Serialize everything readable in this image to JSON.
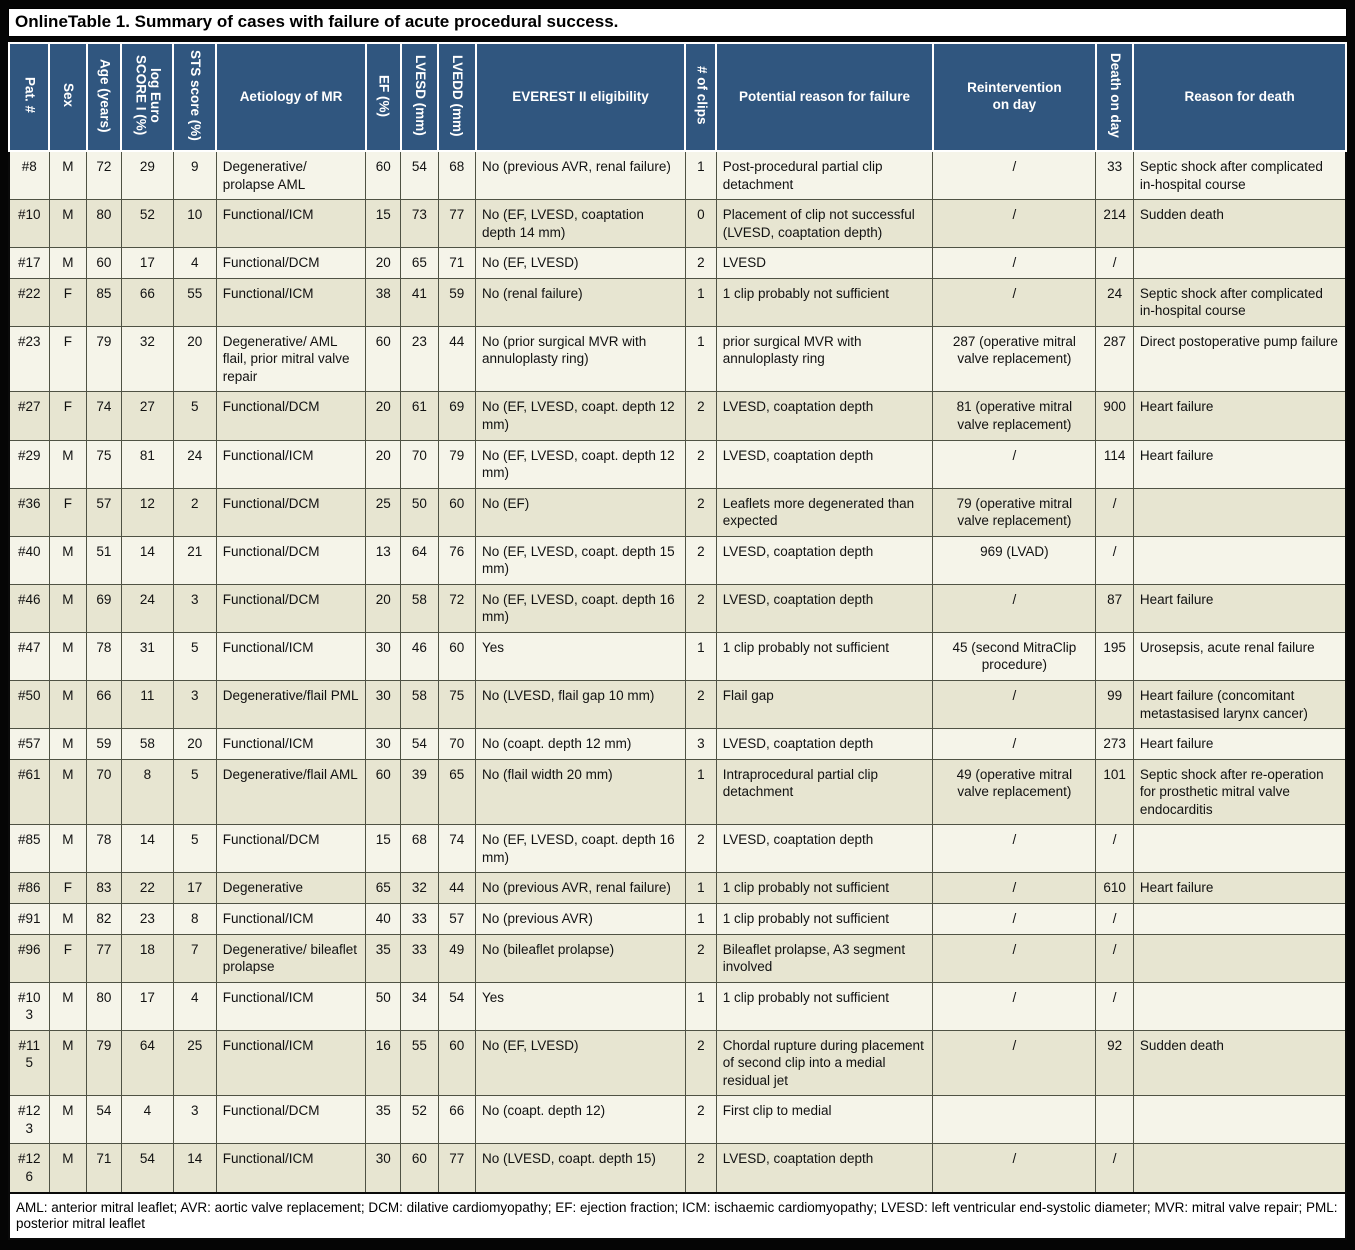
{
  "title": "OnlineTable 1. Summary of cases with failure of acute procedural success.",
  "colors": {
    "header_bg": "#30567F",
    "header_text": "#FFFFFF",
    "row_light": "#F5F4E9",
    "row_dark": "#E7E5D1",
    "grid_line": "#4F5244",
    "frame": "#000000"
  },
  "table": {
    "columns": [
      {
        "label": "Pat. #",
        "rotated": true,
        "align": "center"
      },
      {
        "label": "Sex",
        "rotated": true,
        "align": "center"
      },
      {
        "label": "Age (years)",
        "rotated": true,
        "align": "center"
      },
      {
        "label": "log Euro\nSCORE I (%)",
        "rotated": true,
        "align": "center"
      },
      {
        "label": "STS score (%)",
        "rotated": true,
        "align": "center"
      },
      {
        "label": "Aetiology of MR",
        "rotated": false,
        "align": "left"
      },
      {
        "label": "EF (%)",
        "rotated": true,
        "align": "center"
      },
      {
        "label": "LVESD (mm)",
        "rotated": true,
        "align": "center"
      },
      {
        "label": "LVEDD (mm)",
        "rotated": true,
        "align": "center"
      },
      {
        "label": "EVEREST II eligibility",
        "rotated": false,
        "align": "left"
      },
      {
        "label": "# of clips",
        "rotated": true,
        "align": "center"
      },
      {
        "label": "Potential reason for failure",
        "rotated": false,
        "align": "left"
      },
      {
        "label": "Reintervention\non day",
        "rotated": false,
        "align": "center"
      },
      {
        "label": "Death on day",
        "rotated": true,
        "align": "center"
      },
      {
        "label": "Reason for death",
        "rotated": false,
        "align": "left"
      }
    ],
    "rows": [
      [
        "#8",
        "M",
        "72",
        "29",
        "9",
        "Degenerative/ prolapse AML",
        "60",
        "54",
        "68",
        "No (previous AVR, renal failure)",
        "1",
        "Post-procedural partial clip detachment",
        "/",
        "33",
        "Septic shock after complicated in-hospital course"
      ],
      [
        "#10",
        "M",
        "80",
        "52",
        "10",
        "Functional/ICM",
        "15",
        "73",
        "77",
        "No (EF, LVESD, coaptation depth 14 mm)",
        "0",
        "Placement of clip not successful (LVESD, coaptation depth)",
        "/",
        "214",
        "Sudden death"
      ],
      [
        "#17",
        "M",
        "60",
        "17",
        "4",
        "Functional/DCM",
        "20",
        "65",
        "71",
        "No (EF, LVESD)",
        "2",
        "LVESD",
        "/",
        "/",
        ""
      ],
      [
        "#22",
        "F",
        "85",
        "66",
        "55",
        "Functional/ICM",
        "38",
        "41",
        "59",
        "No (renal failure)",
        "1",
        "1 clip probably not sufficient",
        "/",
        "24",
        "Septic shock after complicated in-hospital course"
      ],
      [
        "#23",
        "F",
        "79",
        "32",
        "20",
        "Degenerative/ AML flail, prior mitral valve repair",
        "60",
        "23",
        "44",
        "No (prior surgical MVR with annuloplasty ring)",
        "1",
        "prior surgical MVR with annuloplasty ring",
        "287 (operative mitral valve replacement)",
        "287",
        "Direct postoperative pump failure"
      ],
      [
        "#27",
        "F",
        "74",
        "27",
        "5",
        "Functional/DCM",
        "20",
        "61",
        "69",
        "No (EF, LVESD, coapt. depth 12 mm)",
        "2",
        "LVESD, coaptation depth",
        "81 (operative mitral valve replacement)",
        "900",
        "Heart failure"
      ],
      [
        "#29",
        "M",
        "75",
        "81",
        "24",
        "Functional/ICM",
        "20",
        "70",
        "79",
        "No (EF, LVESD, coapt. depth 12 mm)",
        "2",
        "LVESD, coaptation depth",
        "/",
        "114",
        "Heart failure"
      ],
      [
        "#36",
        "F",
        "57",
        "12",
        "2",
        "Functional/DCM",
        "25",
        "50",
        "60",
        "No (EF)",
        "2",
        "Leaflets more degenerated than expected",
        "79 (operative mitral valve replacement)",
        "/",
        ""
      ],
      [
        "#40",
        "M",
        "51",
        "14",
        "21",
        "Functional/DCM",
        "13",
        "64",
        "76",
        "No (EF, LVESD, coapt. depth 15 mm)",
        "2",
        "LVESD, coaptation depth",
        "969 (LVAD)",
        "/",
        ""
      ],
      [
        "#46",
        "M",
        "69",
        "24",
        "3",
        "Functional/DCM",
        "20",
        "58",
        "72",
        "No (EF, LVESD, coapt. depth 16 mm)",
        "2",
        "LVESD, coaptation depth",
        "/",
        "87",
        "Heart failure"
      ],
      [
        "#47",
        "M",
        "78",
        "31",
        "5",
        "Functional/ICM",
        "30",
        "46",
        "60",
        "Yes",
        "1",
        "1 clip probably not sufficient",
        "45 (second MitraClip procedure)",
        "195",
        "Urosepsis, acute renal failure"
      ],
      [
        "#50",
        "M",
        "66",
        "11",
        "3",
        "Degenerative/flail PML",
        "30",
        "58",
        "75",
        "No (LVESD, flail gap 10 mm)",
        "2",
        "Flail gap",
        "/",
        "99",
        "Heart failure (concomitant metastasised larynx cancer)"
      ],
      [
        "#57",
        "M",
        "59",
        "58",
        "20",
        "Functional/ICM",
        "30",
        "54",
        "70",
        "No (coapt. depth 12 mm)",
        "3",
        "LVESD, coaptation depth",
        "/",
        "273",
        "Heart failure"
      ],
      [
        "#61",
        "M",
        "70",
        "8",
        "5",
        "Degenerative/flail AML",
        "60",
        "39",
        "65",
        "No (flail width 20 mm)",
        "1",
        "Intraprocedural partial clip detachment",
        "49 (operative mitral valve replacement)",
        "101",
        "Septic shock after re-operation for prosthetic mitral valve endocarditis"
      ],
      [
        "#85",
        "M",
        "78",
        "14",
        "5",
        "Functional/DCM",
        "15",
        "68",
        "74",
        "No (EF, LVESD, coapt. depth 16 mm)",
        "2",
        "LVESD, coaptation depth",
        "/",
        "/",
        ""
      ],
      [
        "#86",
        "F",
        "83",
        "22",
        "17",
        "Degenerative",
        "65",
        "32",
        "44",
        "No (previous AVR, renal failure)",
        "1",
        "1 clip probably not sufficient",
        "/",
        "610",
        "Heart failure"
      ],
      [
        "#91",
        "M",
        "82",
        "23",
        "8",
        "Functional/ICM",
        "40",
        "33",
        "57",
        "No (previous AVR)",
        "1",
        "1 clip probably not sufficient",
        "/",
        "/",
        ""
      ],
      [
        "#96",
        "F",
        "77",
        "18",
        "7",
        "Degenerative/ bileaflet prolapse",
        "35",
        "33",
        "49",
        "No (bileaflet prolapse)",
        "2",
        "Bileaflet prolapse, A3 segment involved",
        "/",
        "/",
        ""
      ],
      [
        "#103",
        "M",
        "80",
        "17",
        "4",
        "Functional/ICM",
        "50",
        "34",
        "54",
        "Yes",
        "1",
        "1 clip probably not sufficient",
        "/",
        "/",
        ""
      ],
      [
        "#115",
        "M",
        "79",
        "64",
        "25",
        "Functional/ICM",
        "16",
        "55",
        "60",
        "No (EF, LVESD)",
        "2",
        "Chordal rupture during placement of second clip into a medial residual jet",
        "/",
        "92",
        "Sudden death"
      ],
      [
        "#123",
        "M",
        "54",
        "4",
        "3",
        "Functional/DCM",
        "35",
        "52",
        "66",
        "No (coapt. depth 12)",
        "2",
        "First clip to medial",
        "",
        "",
        ""
      ],
      [
        "#126",
        "M",
        "71",
        "54",
        "14",
        "Functional/ICM",
        "30",
        "60",
        "77",
        "No (LVESD, coapt. depth 15)",
        "2",
        "LVESD, coaptation depth",
        "/",
        "/",
        ""
      ]
    ],
    "footnote": "AML: anterior mitral leaflet; AVR: aortic valve replacement; DCM: dilative cardiomyopathy; EF: ejection fraction; ICM: ischaemic cardiomyopathy; LVESD: left ventricular end-systolic diameter; MVR: mitral valve repair; PML: posterior mitral leaflet"
  }
}
